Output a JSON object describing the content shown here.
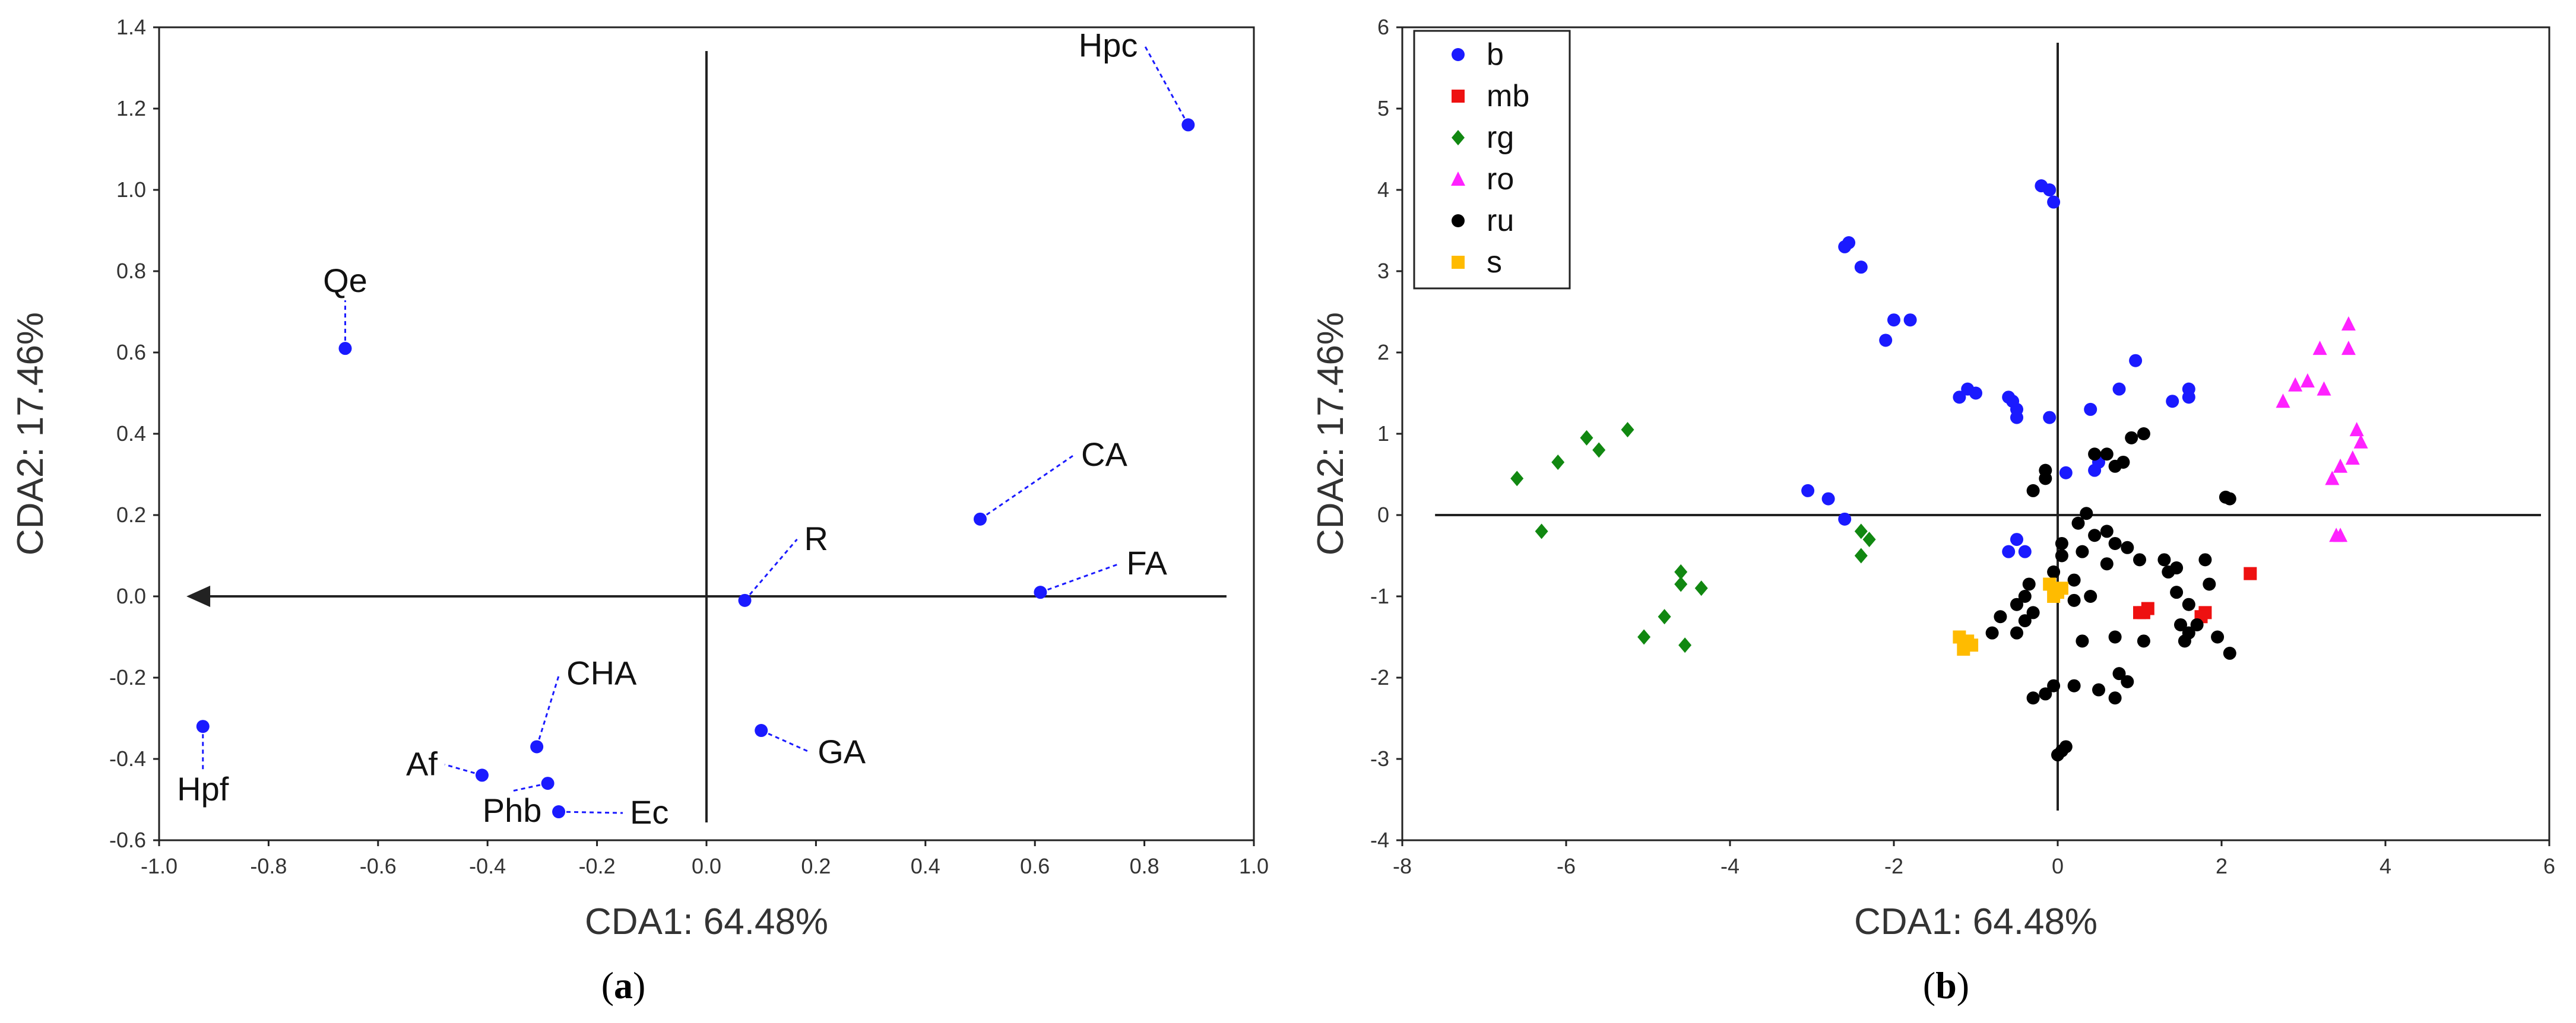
{
  "chart_data": [
    {
      "panel": "a",
      "type": "scatter",
      "title": "",
      "caption": "(a)",
      "caption_pre": "(",
      "caption_letter": "a",
      "caption_post": ")",
      "xlabel": "CDA1: 64.48%",
      "ylabel": "CDA2: 17.46%",
      "xlim": [
        -1.0,
        1.0
      ],
      "ylim": [
        -0.6,
        1.4
      ],
      "xticks": [
        "-1.0",
        "-0.8",
        "-0.6",
        "-0.4",
        "-0.2",
        "0.0",
        "0.2",
        "0.4",
        "0.6",
        "0.8",
        "1.0"
      ],
      "yticks": [
        "-0.6",
        "-0.4",
        "-0.2",
        "0.0",
        "0.2",
        "0.4",
        "0.6",
        "0.8",
        "1.0",
        "1.2",
        "1.4"
      ],
      "marker_color": "#1a1aff",
      "points": [
        {
          "label": "Hpc",
          "x": 0.88,
          "y": 1.16
        },
        {
          "label": "Qe",
          "x": -0.66,
          "y": 0.61
        },
        {
          "label": "CA",
          "x": 0.5,
          "y": 0.19
        },
        {
          "label": "FA",
          "x": 0.61,
          "y": 0.01
        },
        {
          "label": "R",
          "x": 0.07,
          "y": -0.01
        },
        {
          "label": "Hpf",
          "x": -0.92,
          "y": -0.32
        },
        {
          "label": "CHA",
          "x": -0.31,
          "y": -0.37
        },
        {
          "label": "GA",
          "x": 0.1,
          "y": -0.33
        },
        {
          "label": "Af",
          "x": -0.41,
          "y": -0.44
        },
        {
          "label": "Phb",
          "x": -0.29,
          "y": -0.46
        },
        {
          "label": "Ec",
          "x": -0.27,
          "y": -0.53
        }
      ]
    },
    {
      "panel": "b",
      "type": "scatter",
      "title": "",
      "caption": "(b)",
      "caption_pre": "(",
      "caption_letter": "b",
      "caption_post": ")",
      "xlabel": "CDA1: 64.48%",
      "ylabel": "CDA2: 17.46%",
      "xlim": [
        -8,
        6
      ],
      "ylim": [
        -4,
        6
      ],
      "xticks": [
        "-8",
        "-6",
        "-4",
        "-2",
        "0",
        "2",
        "4",
        "6"
      ],
      "yticks": [
        "-4",
        "-3",
        "-2",
        "-1",
        "0",
        "1",
        "2",
        "3",
        "4",
        "5",
        "6"
      ],
      "legend_position": "top-left",
      "series": [
        {
          "name": "b",
          "color": "#1a1aff",
          "marker": "circle",
          "points": [
            [
              -0.2,
              4.05
            ],
            [
              -0.1,
              4.0
            ],
            [
              -0.05,
              3.85
            ],
            [
              -2.6,
              3.3
            ],
            [
              -2.55,
              3.35
            ],
            [
              -2.4,
              3.05
            ],
            [
              -2.0,
              2.4
            ],
            [
              -1.8,
              2.4
            ],
            [
              -2.1,
              2.15
            ],
            [
              1.6,
              1.55
            ],
            [
              1.6,
              1.45
            ],
            [
              1.4,
              1.4
            ],
            [
              0.95,
              1.9
            ],
            [
              0.75,
              1.55
            ],
            [
              0.4,
              1.3
            ],
            [
              -1.1,
              1.55
            ],
            [
              -1.0,
              1.5
            ],
            [
              -1.2,
              1.45
            ],
            [
              -0.6,
              1.45
            ],
            [
              -0.55,
              1.4
            ],
            [
              -0.5,
              1.3
            ],
            [
              -0.1,
              1.2
            ],
            [
              -0.5,
              1.2
            ],
            [
              0.5,
              0.65
            ],
            [
              0.45,
              0.55
            ],
            [
              0.1,
              0.52
            ],
            [
              -3.05,
              0.3
            ],
            [
              -2.8,
              0.2
            ],
            [
              -2.6,
              -0.05
            ],
            [
              -0.6,
              -0.45
            ],
            [
              -0.4,
              -0.45
            ],
            [
              -0.5,
              -0.3
            ]
          ]
        },
        {
          "name": "mb",
          "color": "#ee1111",
          "marker": "square",
          "points": [
            [
              1.0,
              -1.2
            ],
            [
              1.1,
              -1.15
            ],
            [
              1.05,
              -1.2
            ],
            [
              1.8,
              -1.2
            ],
            [
              1.75,
              -1.25
            ],
            [
              2.35,
              -0.72
            ]
          ]
        },
        {
          "name": "rg",
          "color": "#118811",
          "marker": "diamond",
          "points": [
            [
              -6.6,
              0.45
            ],
            [
              -6.1,
              0.65
            ],
            [
              -5.75,
              0.95
            ],
            [
              -5.6,
              0.8
            ],
            [
              -5.25,
              1.05
            ],
            [
              -6.3,
              -0.2
            ],
            [
              -2.4,
              -0.2
            ],
            [
              -2.3,
              -0.3
            ],
            [
              -2.4,
              -0.5
            ],
            [
              -4.6,
              -0.7
            ],
            [
              -4.6,
              -0.85
            ],
            [
              -4.35,
              -0.9
            ],
            [
              -4.8,
              -1.25
            ],
            [
              -5.05,
              -1.5
            ],
            [
              -4.55,
              -1.6
            ]
          ]
        },
        {
          "name": "ro",
          "color": "#ff22ff",
          "marker": "triangle",
          "points": [
            [
              3.55,
              2.35
            ],
            [
              3.55,
              2.05
            ],
            [
              3.2,
              2.05
            ],
            [
              3.05,
              1.65
            ],
            [
              2.9,
              1.6
            ],
            [
              3.25,
              1.55
            ],
            [
              2.75,
              1.4
            ],
            [
              3.65,
              1.05
            ],
            [
              3.7,
              0.9
            ],
            [
              3.6,
              0.7
            ],
            [
              3.45,
              0.6
            ],
            [
              3.35,
              0.45
            ],
            [
              3.45,
              -0.25
            ],
            [
              3.4,
              -0.25
            ]
          ]
        },
        {
          "name": "ru",
          "color": "#000000",
          "marker": "circle",
          "points": [
            [
              1.05,
              1.0
            ],
            [
              0.9,
              0.95
            ],
            [
              0.6,
              0.75
            ],
            [
              0.8,
              0.65
            ],
            [
              0.7,
              0.6
            ],
            [
              0.45,
              0.75
            ],
            [
              -0.15,
              0.55
            ],
            [
              -0.15,
              0.45
            ],
            [
              -0.3,
              0.3
            ],
            [
              2.05,
              0.22
            ],
            [
              2.1,
              0.2
            ],
            [
              0.35,
              0.02
            ],
            [
              0.25,
              -0.1
            ],
            [
              0.45,
              -0.25
            ],
            [
              0.6,
              -0.2
            ],
            [
              0.7,
              -0.35
            ],
            [
              0.3,
              -0.45
            ],
            [
              0.05,
              -0.35
            ],
            [
              0.05,
              -0.5
            ],
            [
              -0.05,
              -0.7
            ],
            [
              0.2,
              -0.8
            ],
            [
              0.6,
              -0.6
            ],
            [
              0.85,
              -0.4
            ],
            [
              1.0,
              -0.55
            ],
            [
              1.3,
              -0.55
            ],
            [
              1.45,
              -0.65
            ],
            [
              1.35,
              -0.7
            ],
            [
              1.8,
              -0.55
            ],
            [
              1.85,
              -0.85
            ],
            [
              1.45,
              -0.95
            ],
            [
              1.6,
              -1.1
            ],
            [
              1.5,
              -1.35
            ],
            [
              1.6,
              -1.45
            ],
            [
              1.55,
              -1.55
            ],
            [
              1.7,
              -1.35
            ],
            [
              1.95,
              -1.5
            ],
            [
              2.1,
              -1.7
            ],
            [
              0.4,
              -1.0
            ],
            [
              0.2,
              -1.05
            ],
            [
              -0.35,
              -0.85
            ],
            [
              -0.4,
              -1.0
            ],
            [
              -0.3,
              -1.2
            ],
            [
              -0.5,
              -1.1
            ],
            [
              -0.4,
              -1.3
            ],
            [
              -0.5,
              -1.45
            ],
            [
              -0.7,
              -1.25
            ],
            [
              -0.8,
              -1.45
            ],
            [
              0.3,
              -1.55
            ],
            [
              0.7,
              -1.5
            ],
            [
              1.05,
              -1.55
            ],
            [
              0.75,
              -1.95
            ],
            [
              0.85,
              -2.05
            ],
            [
              0.7,
              -2.25
            ],
            [
              0.5,
              -2.15
            ],
            [
              0.2,
              -2.1
            ],
            [
              -0.15,
              -2.2
            ],
            [
              -0.3,
              -2.25
            ],
            [
              -0.05,
              -2.1
            ],
            [
              0.1,
              -2.85
            ],
            [
              0.05,
              -2.9
            ],
            [
              0.0,
              -2.95
            ]
          ]
        },
        {
          "name": "s",
          "color": "#ffbb00",
          "marker": "square",
          "points": [
            [
              -0.1,
              -0.85
            ],
            [
              0.05,
              -0.9
            ],
            [
              -0.05,
              -1.0
            ],
            [
              0.0,
              -0.95
            ],
            [
              -1.2,
              -1.5
            ],
            [
              -1.1,
              -1.55
            ],
            [
              -1.15,
              -1.65
            ],
            [
              -1.05,
              -1.6
            ]
          ]
        }
      ]
    }
  ]
}
